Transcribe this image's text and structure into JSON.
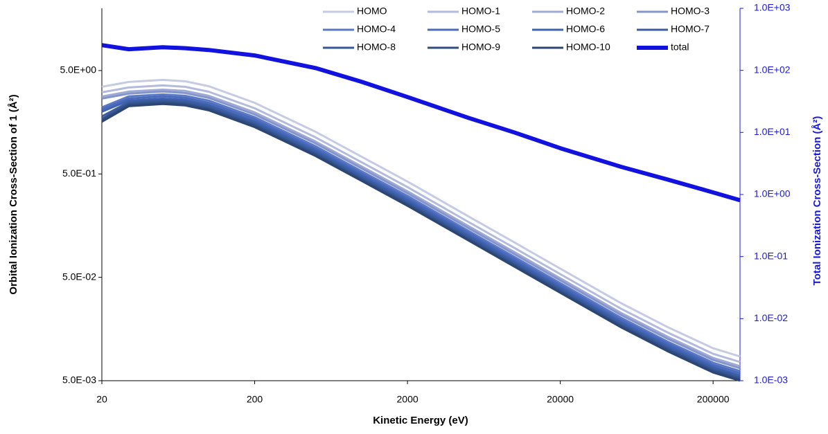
{
  "chart_data": {
    "type": "line",
    "x_label": "Kinetic Energy (eV)",
    "y_label": "Orbital Ionization Cross-Section of 1 (Å²)",
    "y2_label": "Total Ionization Cross-Section (Å²)",
    "x": [
      20,
      30,
      50,
      70,
      100,
      200,
      500,
      1000,
      2000,
      5000,
      10000,
      20000,
      50000,
      100000,
      200000,
      300000
    ],
    "xlim": [
      20,
      300000
    ],
    "xticks": [
      20,
      200,
      2000,
      20000,
      200000
    ],
    "ylim": [
      0.005,
      20
    ],
    "yticks": [
      {
        "value": 0.005,
        "label": "5.0E-03"
      },
      {
        "value": 0.05,
        "label": "5.0E-02"
      },
      {
        "value": 0.5,
        "label": "5.0E-01"
      },
      {
        "value": 5,
        "label": "5.0E+00"
      }
    ],
    "y2lim": [
      0.001,
      1000
    ],
    "y2ticks": [
      {
        "value": 0.001,
        "label": "1.0E-03"
      },
      {
        "value": 0.01,
        "label": "1.0E-02"
      },
      {
        "value": 0.1,
        "label": "1.0E-01"
      },
      {
        "value": 1,
        "label": "1.0E+00"
      },
      {
        "value": 10,
        "label": "1.0E+01"
      },
      {
        "value": 100,
        "label": "1.0E+02"
      },
      {
        "value": 1000,
        "label": "1.0E+03"
      }
    ],
    "log_x": true,
    "log_y": true,
    "legend_position": "top-right",
    "y2_color": "#1a1adc",
    "series": [
      {
        "name": "HOMO",
        "color": "#c6cbe4",
        "values": [
          3.48,
          3.88,
          4.06,
          3.94,
          3.53,
          2.44,
          1.28,
          0.735,
          0.422,
          0.195,
          0.109,
          0.0607,
          0.0281,
          0.0166,
          0.0103,
          0.00857
        ]
      },
      {
        "name": "HOMO-1",
        "color": "#b2bade",
        "values": [
          3.08,
          3.43,
          3.59,
          3.48,
          3.12,
          2.16,
          1.13,
          0.65,
          0.373,
          0.172,
          0.0964,
          0.0537,
          0.0248,
          0.0147,
          0.0091,
          0.00758
        ]
      },
      {
        "name": "HOMO-2",
        "color": "#9ea9d6",
        "values": [
          2.8,
          3.13,
          3.27,
          3.18,
          2.85,
          1.97,
          1.03,
          0.592,
          0.34,
          0.157,
          0.0879,
          0.0489,
          0.0226,
          0.0134,
          0.0083,
          0.00691
        ]
      },
      {
        "name": "HOMO-3",
        "color": "#8495cb",
        "values": [
          2.68,
          2.99,
          3.13,
          3.03,
          2.72,
          1.88,
          0.986,
          0.566,
          0.325,
          0.15,
          0.0839,
          0.0467,
          0.0216,
          0.0128,
          0.00793,
          0.0066
        ]
      },
      {
        "name": "HOMO-4",
        "color": "#5a78c6",
        "values": [
          2.2,
          2.81,
          2.94,
          2.85,
          2.56,
          1.77,
          0.927,
          0.532,
          0.306,
          0.141,
          0.0789,
          0.0439,
          0.0203,
          0.012,
          0.00746,
          0.0062
        ]
      },
      {
        "name": "HOMO-5",
        "color": "#4a6bbb",
        "values": [
          2.1,
          2.68,
          2.81,
          2.72,
          2.44,
          1.69,
          0.884,
          0.508,
          0.292,
          0.135,
          0.0753,
          0.0419,
          0.0194,
          0.0115,
          0.00712,
          0.00592
        ]
      },
      {
        "name": "HOMO-6",
        "color": "#3f62b2",
        "values": [
          2.0,
          2.56,
          2.68,
          2.6,
          2.33,
          1.61,
          0.845,
          0.485,
          0.279,
          0.129,
          0.0719,
          0.0401,
          0.0185,
          0.011,
          0.0068,
          0.00566
        ]
      },
      {
        "name": "HOMO-7",
        "color": "#3c5da3",
        "values": [
          1.8,
          2.48,
          2.6,
          2.52,
          2.26,
          1.56,
          0.819,
          0.47,
          0.27,
          0.125,
          0.0698,
          0.0388,
          0.018,
          0.0106,
          0.00659,
          0.00548
        ]
      },
      {
        "name": "HOMO-8",
        "color": "#375794",
        "values": [
          1.7,
          2.41,
          2.52,
          2.44,
          2.19,
          1.51,
          0.794,
          0.456,
          0.262,
          0.121,
          0.0676,
          0.0376,
          0.0174,
          0.0103,
          0.00639,
          0.00531
        ]
      },
      {
        "name": "HOMO-9",
        "color": "#304d82",
        "values": [
          1.65,
          2.34,
          2.44,
          2.37,
          2.13,
          1.47,
          0.771,
          0.442,
          0.254,
          0.117,
          0.0656,
          0.0365,
          0.0169,
          0.00999,
          0.0062,
          0.00516
        ]
      },
      {
        "name": "HOMO-10",
        "color": "#2b4574",
        "values": [
          1.6,
          2.26,
          2.37,
          2.3,
          2.06,
          1.42,
          0.746,
          0.429,
          0.246,
          0.114,
          0.0635,
          0.0354,
          0.0164,
          0.00968,
          0.006,
          0.005
        ]
      },
      {
        "name": "total",
        "color": "#1212e0",
        "axis": "y2",
        "values": [
          255,
          219,
          236,
          228,
          213,
          174,
          109,
          65.5,
          37.2,
          17.2,
          10.0,
          5.57,
          2.79,
          1.75,
          1.08,
          0.81
        ]
      }
    ]
  }
}
